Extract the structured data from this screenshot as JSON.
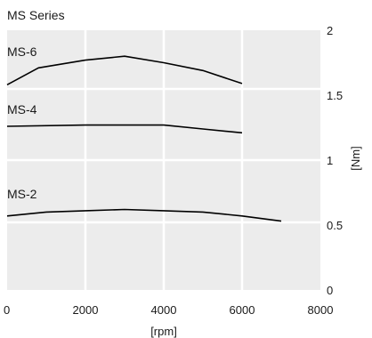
{
  "chart_data": {
    "type": "line",
    "title": "MS Series",
    "xlabel": "[rpm]",
    "ylabel": "[Nm]",
    "xlim": [
      0,
      8000
    ],
    "ylim": [
      0,
      2
    ],
    "xticks": [
      "0",
      "2000",
      "4000",
      "6000",
      "8000"
    ],
    "yticks": [
      "0",
      "0.5",
      "1",
      "1.5",
      "2"
    ],
    "grid": true,
    "y_axis_side": "right",
    "series": [
      {
        "name": "MS-6",
        "x": [
          0,
          800,
          2000,
          3000,
          4000,
          5000,
          6000
        ],
        "y": [
          1.58,
          1.71,
          1.77,
          1.8,
          1.75,
          1.69,
          1.59
        ]
      },
      {
        "name": "MS-4",
        "x": [
          0,
          2000,
          4000,
          5000,
          6000
        ],
        "y": [
          1.26,
          1.27,
          1.27,
          1.24,
          1.21
        ]
      },
      {
        "name": "MS-2",
        "x": [
          0,
          1000,
          2000,
          3000,
          4000,
          5000,
          6000,
          7000
        ],
        "y": [
          0.57,
          0.6,
          0.61,
          0.62,
          0.61,
          0.6,
          0.57,
          0.53
        ]
      }
    ],
    "colors": {
      "plot_background": "#ececec",
      "grid": "#ffffff",
      "line": "#000000",
      "text": "#1a1a1a"
    }
  }
}
